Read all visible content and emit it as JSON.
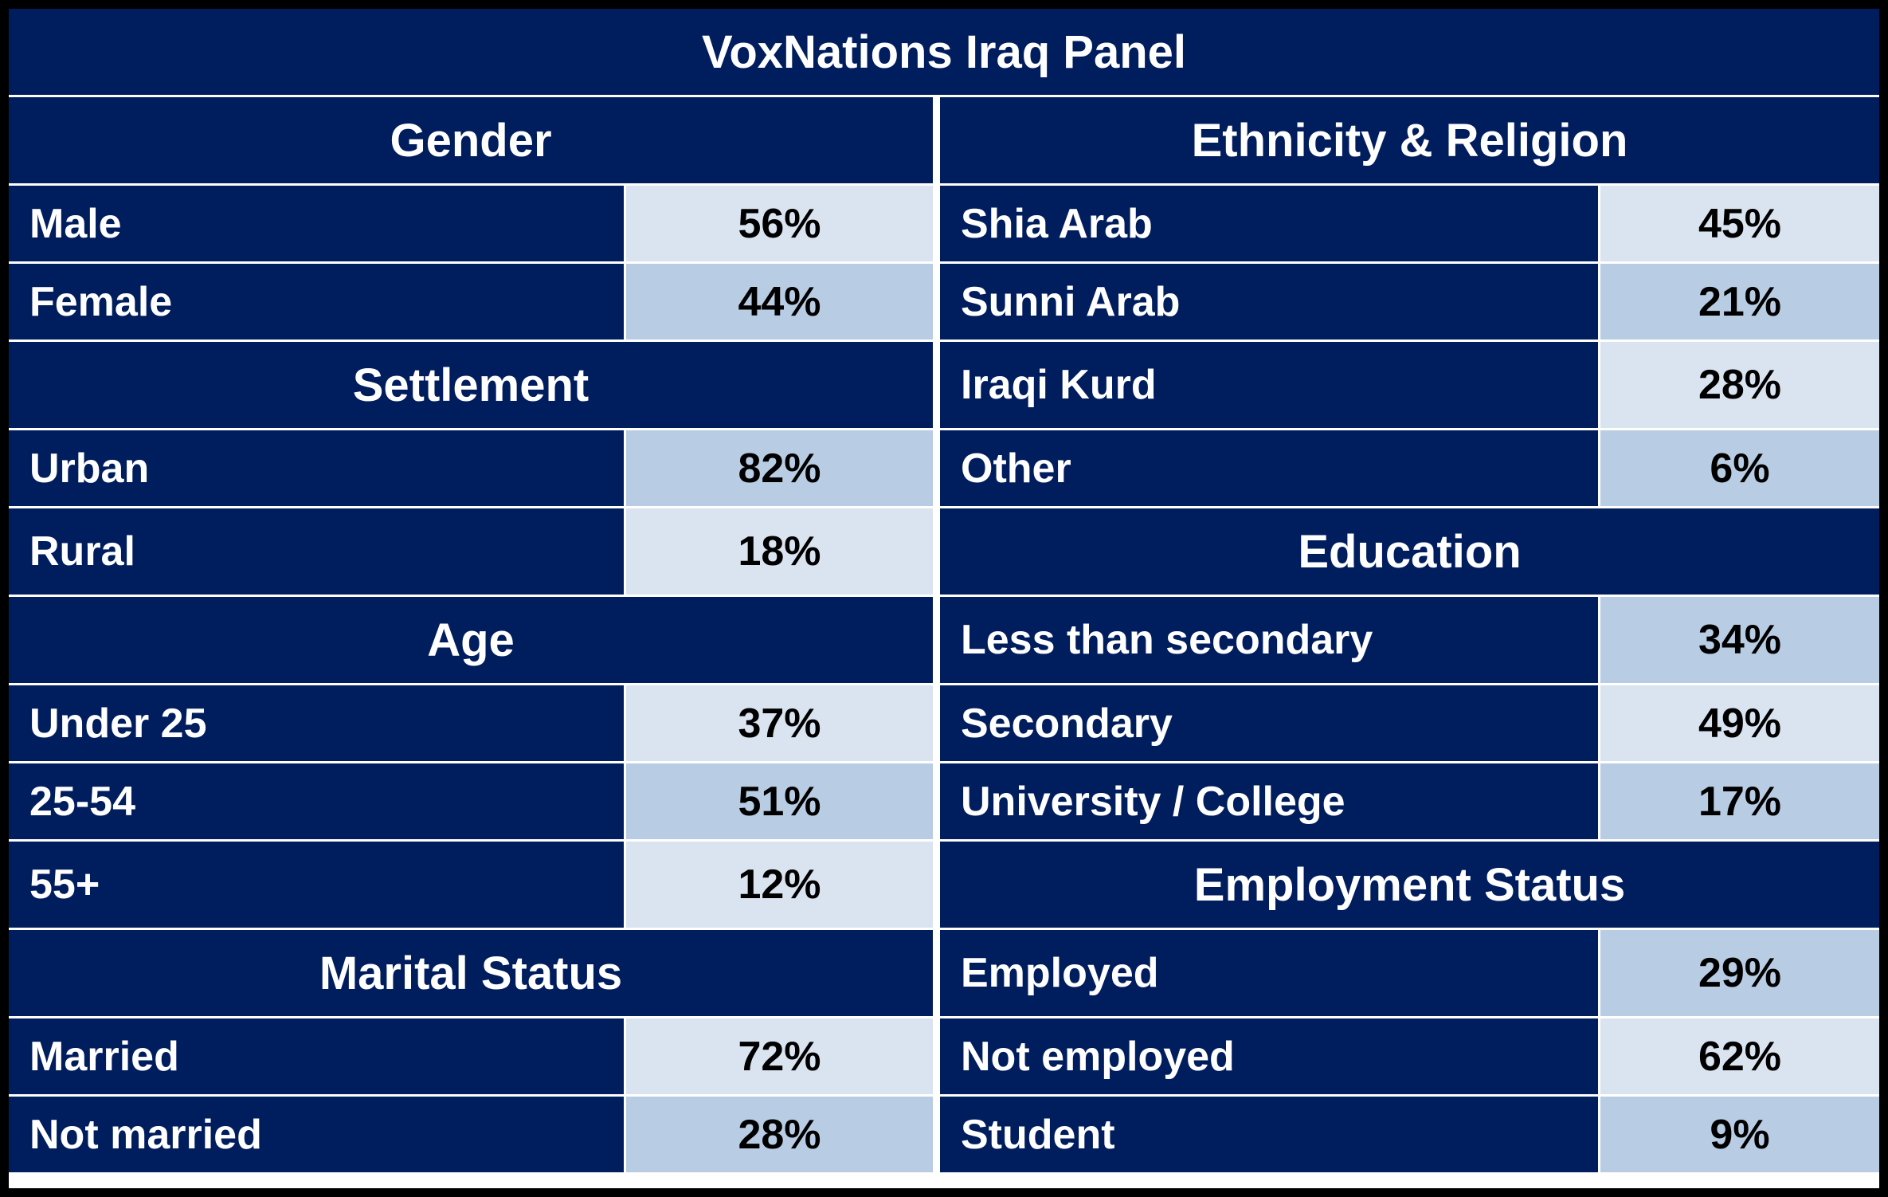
{
  "title": "VoxNations Iraq Panel",
  "left": {
    "gender": {
      "heading": "Gender",
      "rows": [
        {
          "label": "Male",
          "value": "56%"
        },
        {
          "label": "Female",
          "value": "44%"
        }
      ]
    },
    "settlement": {
      "heading": "Settlement",
      "rows": [
        {
          "label": "Urban",
          "value": "82%"
        },
        {
          "label": "Rural",
          "value": "18%"
        }
      ]
    },
    "age": {
      "heading": "Age",
      "rows": [
        {
          "label": "Under 25",
          "value": "37%"
        },
        {
          "label": "25-54",
          "value": "51%"
        },
        {
          "label": "55+",
          "value": "12%"
        }
      ]
    },
    "marital": {
      "heading": "Marital Status",
      "rows": [
        {
          "label": "Married",
          "value": "72%"
        },
        {
          "label": "Not married",
          "value": "28%"
        }
      ]
    }
  },
  "right": {
    "ethnicity": {
      "heading": "Ethnicity & Religion",
      "rows": [
        {
          "label": "Shia Arab",
          "value": "45%"
        },
        {
          "label": "Sunni Arab",
          "value": "21%"
        },
        {
          "label": "Iraqi Kurd",
          "value": "28%"
        },
        {
          "label": "Other",
          "value": "6%"
        }
      ]
    },
    "education": {
      "heading": "Education",
      "rows": [
        {
          "label": "Less than secondary",
          "value": "34%"
        },
        {
          "label": "Secondary",
          "value": "49%"
        },
        {
          "label": "University / College",
          "value": "17%"
        }
      ]
    },
    "employment": {
      "heading": "Employment Status",
      "rows": [
        {
          "label": "Employed",
          "value": "29%"
        },
        {
          "label": "Not employed",
          "value": "62%"
        },
        {
          "label": "Student",
          "value": "9%"
        }
      ]
    }
  },
  "colors": {
    "header_bg": "#001d5e",
    "value_light": "#dae3f0",
    "value_mid": "#b8cce4",
    "border": "#000000"
  }
}
